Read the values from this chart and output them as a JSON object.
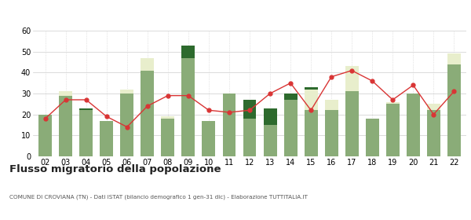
{
  "years": [
    "02",
    "03",
    "04",
    "05",
    "06",
    "07",
    "08",
    "09",
    "10",
    "11",
    "12",
    "13",
    "14",
    "15",
    "16",
    "17",
    "18",
    "19",
    "20",
    "21",
    "22"
  ],
  "iscritti_comuni": [
    20,
    29,
    22,
    17,
    30,
    41,
    18,
    47,
    17,
    30,
    18,
    15,
    27,
    22,
    22,
    31,
    18,
    25,
    30,
    22,
    44
  ],
  "iscritti_estero": [
    0,
    2,
    0,
    0,
    2,
    6,
    1,
    0,
    0,
    0,
    0,
    0,
    0,
    10,
    5,
    12,
    0,
    1,
    0,
    3,
    5
  ],
  "iscritti_altri": [
    0,
    0,
    1,
    0,
    0,
    0,
    0,
    6,
    0,
    0,
    9,
    8,
    3,
    1,
    0,
    0,
    0,
    0,
    0,
    0,
    0
  ],
  "cancellati": [
    18,
    27,
    27,
    19,
    14,
    24,
    29,
    29,
    22,
    21,
    22,
    30,
    35,
    22,
    38,
    41,
    36,
    27,
    34,
    20,
    31
  ],
  "color_comuni": "#8aac78",
  "color_estero": "#e8eecc",
  "color_altri": "#2d6a2d",
  "color_cancellati": "#d93535",
  "color_grid": "#cccccc",
  "ylim": [
    0,
    60
  ],
  "yticks": [
    0,
    10,
    20,
    30,
    40,
    50,
    60
  ],
  "title": "Flusso migratorio della popolazione",
  "subtitle": "COMUNE DI CROVIANA (TN) - Dati ISTAT (bilancio demografico 1 gen-31 dic) - Elaborazione TUTTITALIA.IT"
}
